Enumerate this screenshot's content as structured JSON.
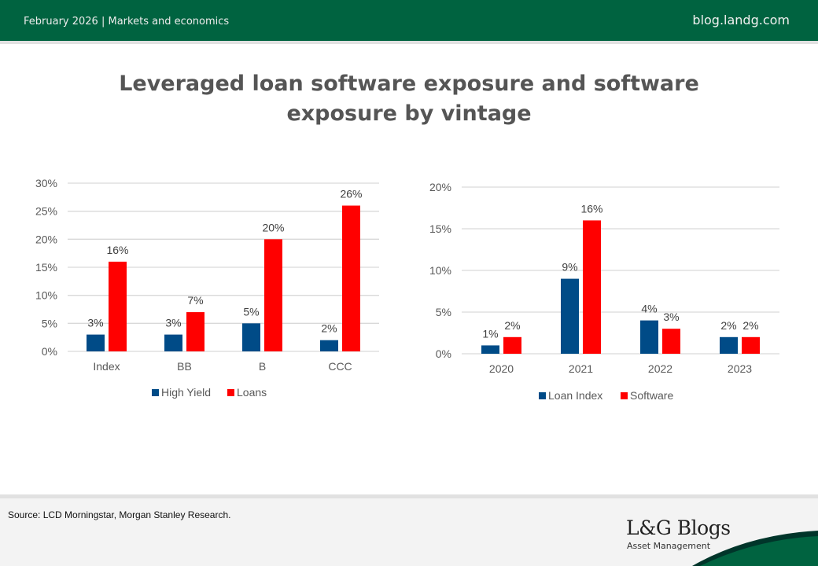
{
  "header": {
    "date": "February 2026",
    "separator": "|",
    "category": "Markets and economics",
    "site": "blog.landg.com"
  },
  "title": {
    "line1": "Leveraged loan software exposure and software",
    "line2": "exposure by vintage"
  },
  "colors": {
    "brand_green": "#006340",
    "series_blue": "#004b87",
    "series_red": "#ff0000"
  },
  "chart_data": [
    {
      "type": "bar",
      "title": "",
      "categories": [
        "Index",
        "BB",
        "B",
        "CCC"
      ],
      "series": [
        {
          "name": "High Yield",
          "values": [
            3,
            3,
            5,
            2
          ],
          "color": "#004b87"
        },
        {
          "name": "Loans",
          "values": [
            16,
            7,
            20,
            26
          ],
          "color": "#ff0000"
        }
      ],
      "value_labels": [
        [
          "3%",
          "3%",
          "5%",
          "2%"
        ],
        [
          "16%",
          "7%",
          "20%",
          "26%"
        ]
      ],
      "xlabel": "",
      "ylabel": "",
      "ylim": [
        0,
        30
      ],
      "yticks": [
        0,
        5,
        10,
        15,
        20,
        25,
        30
      ],
      "ytick_labels": [
        "0%",
        "5%",
        "10%",
        "15%",
        "20%",
        "25%",
        "30%"
      ],
      "grid": true,
      "legend": "bottom"
    },
    {
      "type": "bar",
      "title": "",
      "categories": [
        "2020",
        "2021",
        "2022",
        "2023"
      ],
      "series": [
        {
          "name": "Loan Index",
          "values": [
            1,
            9,
            4,
            2
          ],
          "color": "#004b87"
        },
        {
          "name": "Software",
          "values": [
            2,
            16,
            3,
            2
          ],
          "color": "#ff0000"
        }
      ],
      "value_labels": [
        [
          "1%",
          "9%",
          "4%",
          "2%"
        ],
        [
          "2%",
          "16%",
          "3%",
          "2%"
        ]
      ],
      "xlabel": "",
      "ylabel": "",
      "ylim": [
        0,
        20
      ],
      "yticks": [
        0,
        5,
        10,
        15,
        20
      ],
      "ytick_labels": [
        "0%",
        "5%",
        "10%",
        "15%",
        "20%"
      ],
      "grid": true,
      "legend": "bottom"
    }
  ],
  "footer": {
    "source": "Source: LCD Morningstar, Morgan Stanley Research.",
    "logo_main": "L&G Blogs",
    "logo_sub": "Asset Management"
  }
}
